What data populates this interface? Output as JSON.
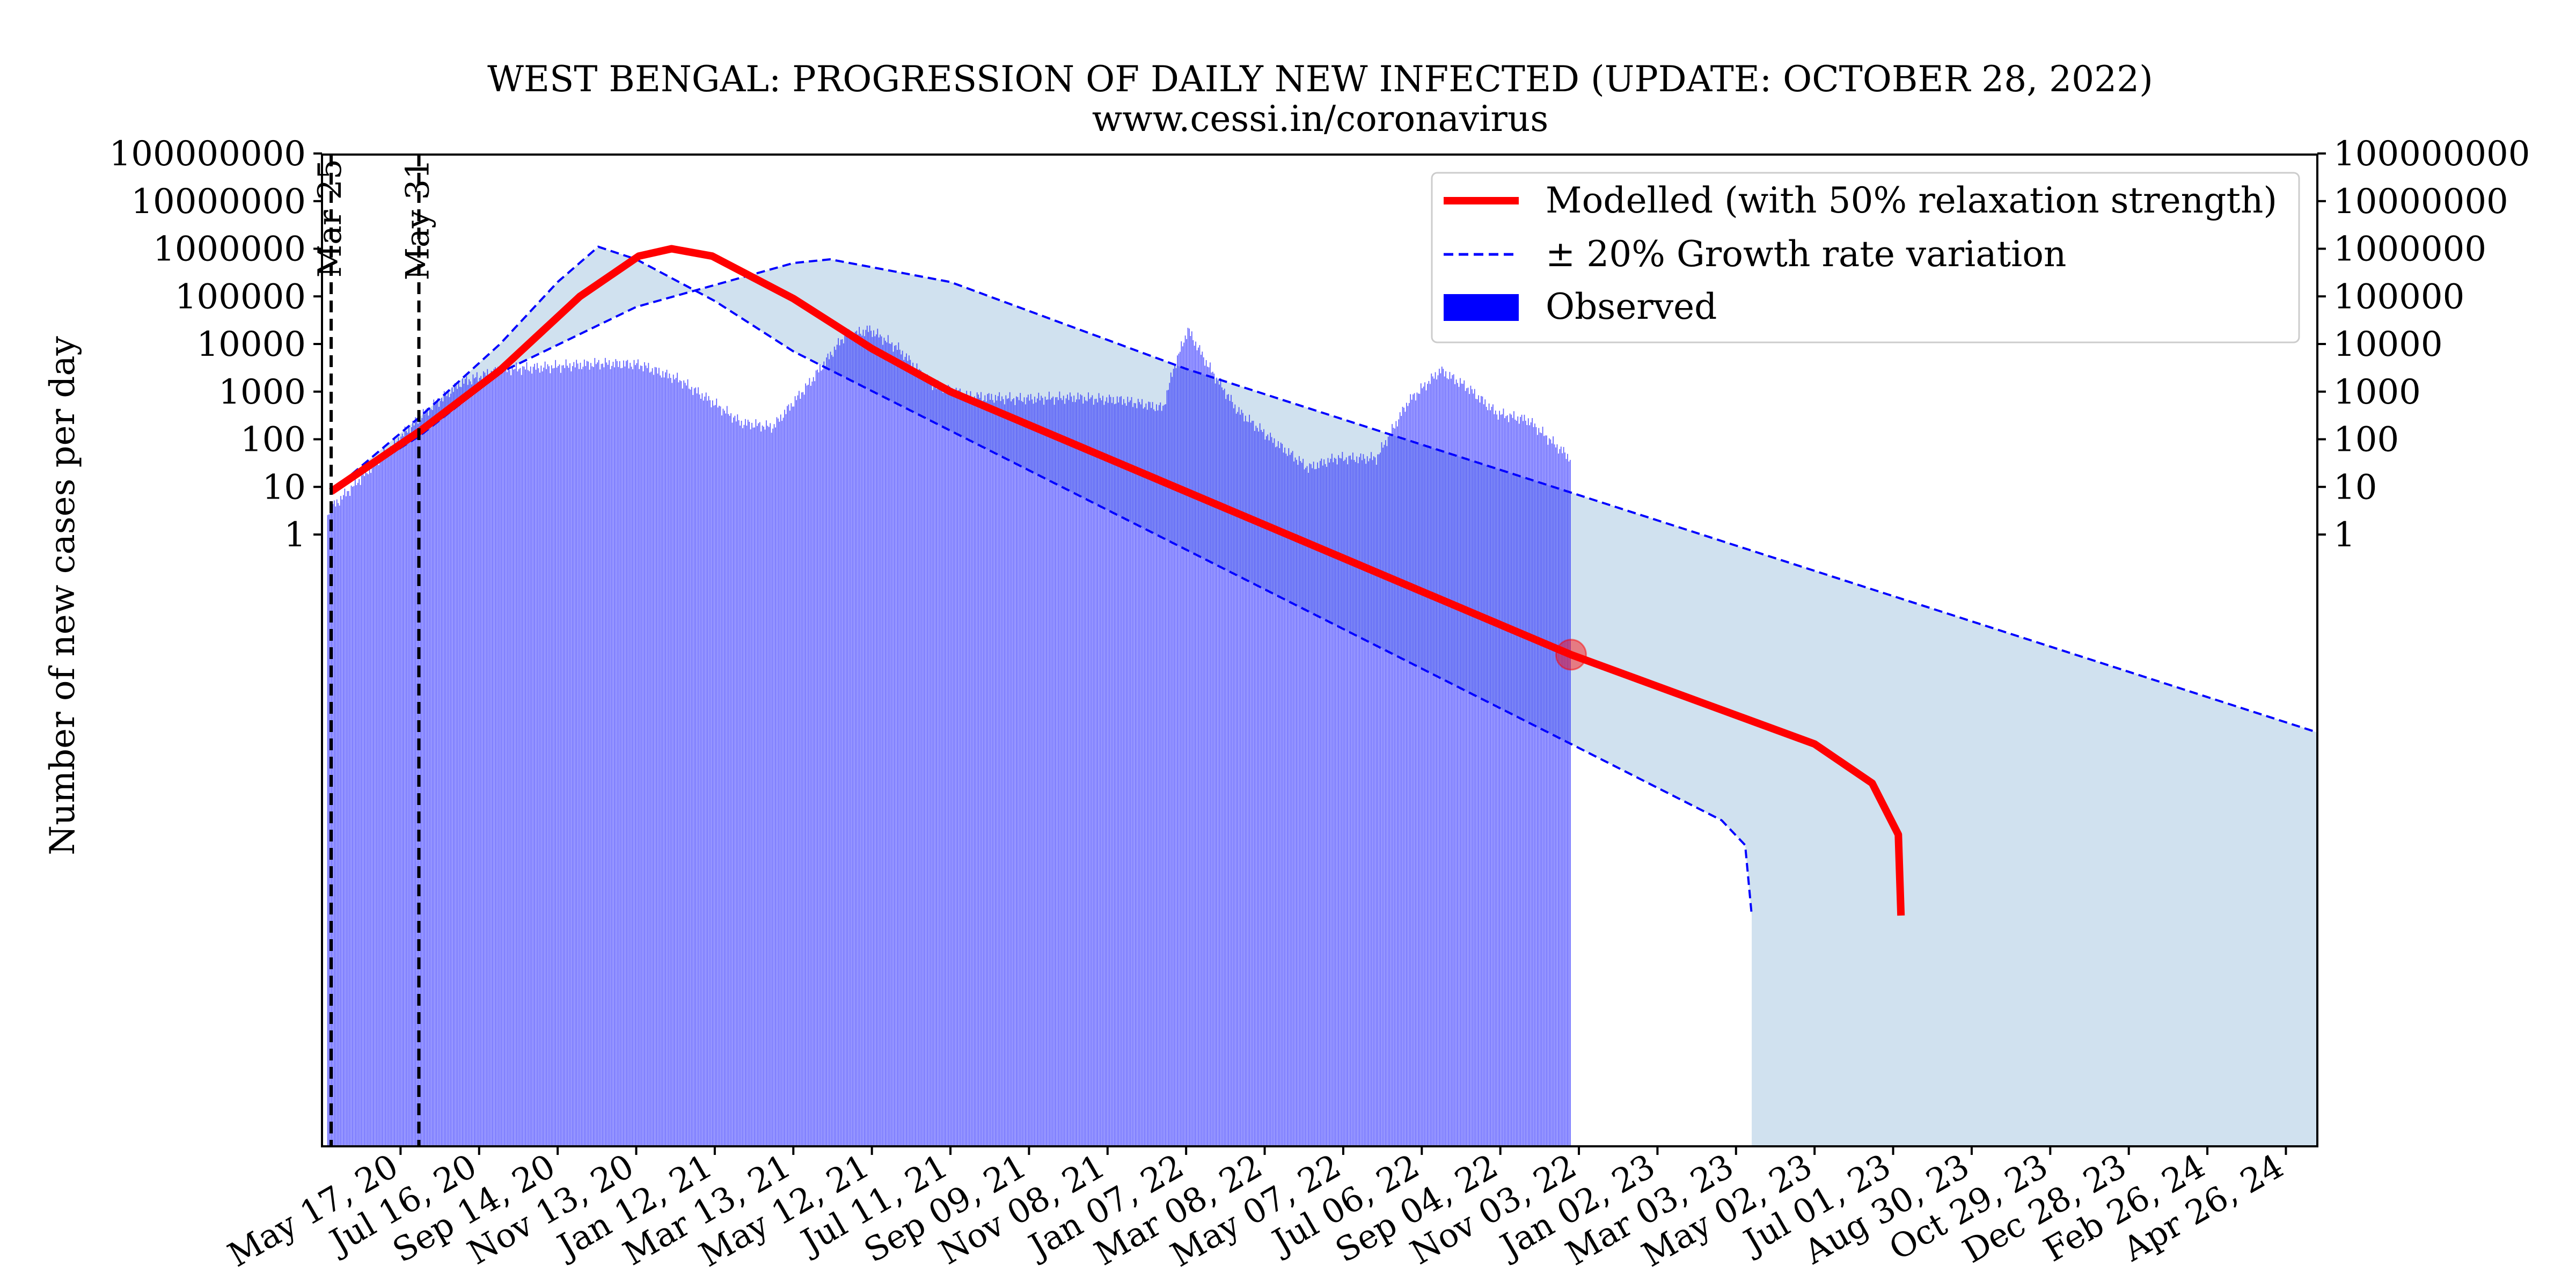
{
  "chart_data": {
    "type": "bar",
    "title": "WEST BENGAL: PROGRESSION OF DAILY NEW INFECTED (UPDATE: OCTOBER 28, 2022)",
    "subtitle": "www.cessi.in/coronavirus",
    "ylabel": "Number of new cases per day",
    "xlabel": "",
    "y_scale": "log",
    "y_tick_labels": [
      "1",
      "10",
      "100",
      "1000",
      "10000",
      "100000",
      "1000000",
      "10000000",
      "100000000"
    ],
    "x_tick_labels": [
      "May 17, 20",
      "Jul 16, 20",
      "Sep 14, 20",
      "Nov 13, 20",
      "Jan 12, 21",
      "Mar 13, 21",
      "May 12, 21",
      "Jul 11, 21",
      "Sep 09, 21",
      "Nov 08, 21",
      "Jan 07, 22",
      "Mar 08, 22",
      "May 07, 22",
      "Jul 06, 22",
      "Sep 04, 22",
      "Nov 03, 22",
      "Jan 02, 23",
      "Mar 03, 23",
      "May 02, 23",
      "Jul 01, 23",
      "Aug 30, 23",
      "Oct 29, 23",
      "Dec 28, 23",
      "Feb 26, 24",
      "Apr 26, 24"
    ],
    "x_range": [
      "2020-03-18",
      "2024-05-20"
    ],
    "vlines": [
      {
        "date": "2020-03-25",
        "label": "Mar 25"
      },
      {
        "date": "2020-05-31",
        "label": "May 31"
      }
    ],
    "legend": {
      "position": "top-right",
      "entries": [
        {
          "label": "Modelled (with 50% relaxation strength)",
          "style": "solid-line",
          "color": "#ff0000"
        },
        {
          "label": "± 20% Growth rate variation",
          "style": "dashed-line",
          "color": "#0000ff"
        },
        {
          "label": "Observed",
          "style": "bar",
          "color": "#0000ff"
        }
      ]
    },
    "series": [
      {
        "name": "Observed",
        "kind": "bar",
        "color": "#0000ff",
        "points": [
          [
            "2020-03-22",
            3
          ],
          [
            "2020-04-10",
            10
          ],
          [
            "2020-05-01",
            40
          ],
          [
            "2020-06-01",
            300
          ],
          [
            "2020-07-01",
            1500
          ],
          [
            "2020-08-01",
            2900
          ],
          [
            "2020-09-01",
            3200
          ],
          [
            "2020-10-15",
            3900
          ],
          [
            "2020-11-15",
            3700
          ],
          [
            "2020-12-15",
            1800
          ],
          [
            "2021-01-10",
            600
          ],
          [
            "2021-02-01",
            220
          ],
          [
            "2021-02-25",
            180
          ],
          [
            "2021-03-25",
            1500
          ],
          [
            "2021-04-20",
            14000
          ],
          [
            "2021-05-10",
            20000
          ],
          [
            "2021-06-01",
            8000
          ],
          [
            "2021-06-25",
            1500
          ],
          [
            "2021-07-25",
            800
          ],
          [
            "2021-09-01",
            700
          ],
          [
            "2021-10-15",
            750
          ],
          [
            "2021-11-20",
            650
          ],
          [
            "2021-12-20",
            450
          ],
          [
            "2021-12-28",
            3000
          ],
          [
            "2022-01-08",
            20000
          ],
          [
            "2022-01-25",
            3000
          ],
          [
            "2022-02-15",
            400
          ],
          [
            "2022-03-15",
            90
          ],
          [
            "2022-04-10",
            25
          ],
          [
            "2022-05-01",
            40
          ],
          [
            "2022-06-01",
            40
          ],
          [
            "2022-06-25",
            600
          ],
          [
            "2022-07-20",
            2800
          ],
          [
            "2022-08-10",
            1200
          ],
          [
            "2022-09-01",
            350
          ],
          [
            "2022-09-25",
            250
          ],
          [
            "2022-10-27",
            40
          ]
        ]
      },
      {
        "name": "Modelled (with 50% relaxation strength)",
        "kind": "line",
        "color": "#ff0000",
        "points": [
          [
            "2020-03-25",
            8
          ],
          [
            "2020-06-01",
            150
          ],
          [
            "2020-08-01",
            2800
          ],
          [
            "2020-10-01",
            100000
          ],
          [
            "2020-11-15",
            700000
          ],
          [
            "2020-12-10",
            1000000
          ],
          [
            "2021-01-10",
            700000
          ],
          [
            "2021-03-13",
            90000
          ],
          [
            "2021-05-12",
            8000
          ],
          [
            "2021-07-11",
            1000
          ],
          [
            "2022-10-28",
            0.003
          ],
          [
            "2023-05-02",
            4e-05
          ],
          [
            "2023-06-15",
            6e-06
          ],
          [
            "2023-07-05",
            5e-07
          ],
          [
            "2023-07-07",
            1e-08
          ]
        ]
      },
      {
        "name": "Growth rate variation (+20%)",
        "kind": "dashed-line",
        "color": "#0000ff",
        "points": [
          [
            "2020-03-25",
            8
          ],
          [
            "2020-06-01",
            120
          ],
          [
            "2020-08-01",
            2500
          ],
          [
            "2020-11-13",
            60000
          ],
          [
            "2021-03-13",
            500000
          ],
          [
            "2021-04-10",
            600000
          ],
          [
            "2021-07-11",
            200000
          ],
          [
            "2022-01-07",
            3000
          ],
          [
            "2024-05-20",
            7e-05
          ]
        ]
      },
      {
        "name": "Growth rate variation (-20%)",
        "kind": "dashed-line",
        "color": "#0000ff",
        "points": [
          [
            "2020-03-25",
            8
          ],
          [
            "2020-06-01",
            300
          ],
          [
            "2020-08-01",
            10000
          ],
          [
            "2020-09-14",
            200000
          ],
          [
            "2020-10-15",
            1100000
          ],
          [
            "2020-11-13",
            600000
          ],
          [
            "2021-01-12",
            80000
          ],
          [
            "2021-03-13",
            7000
          ],
          [
            "2022-10-28",
            4e-05
          ],
          [
            "2023-02-20",
            1e-06
          ],
          [
            "2023-03-10",
            3e-07
          ],
          [
            "2023-03-15",
            1e-08
          ]
        ]
      }
    ],
    "marker": {
      "date": "2022-10-28",
      "value": 0.003,
      "color": "#ff0000"
    },
    "shaded_band_color": "#d0e1ef",
    "grid": false
  }
}
